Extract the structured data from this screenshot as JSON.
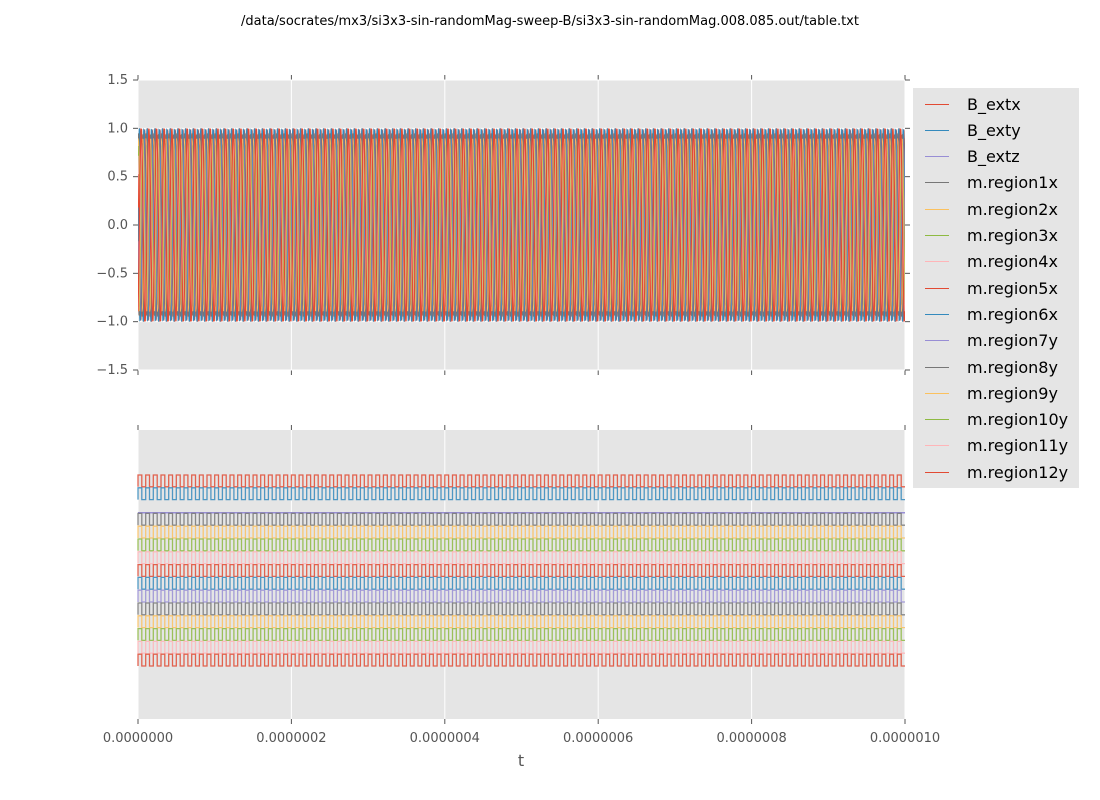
{
  "title": "/data/socrates/mx3/si3x3-sin-randomMag-sweep-B/si3x3-sin-randomMag.008.085.out/table.txt",
  "chart_data": [
    {
      "type": "line",
      "xlabel": "",
      "ylabel": "",
      "xlim": [
        0,
        1e-06
      ],
      "ylim": [
        -1.5,
        1.5
      ],
      "yticks": [
        "1.5",
        "1.0",
        "0.5",
        "0.0",
        "−0.5",
        "−1.0",
        "−1.5"
      ],
      "grid": true,
      "legend": "outside-right",
      "waveform": "sinusoid",
      "cycles": 100,
      "series": [
        {
          "name": "B_extx",
          "amplitude": 1.0
        },
        {
          "name": "B_exty",
          "amplitude": 1.0
        },
        {
          "name": "B_extz",
          "amplitude": 0.0
        },
        {
          "name": "m.region1x",
          "amplitude": 0.95
        },
        {
          "name": "m.region2x",
          "amplitude": 0.9
        },
        {
          "name": "m.region3x",
          "amplitude": 0.85
        },
        {
          "name": "m.region4x",
          "amplitude": 0.9
        },
        {
          "name": "m.region5x",
          "amplitude": 1.0
        },
        {
          "name": "m.region6x",
          "amplitude": 1.0
        },
        {
          "name": "m.region7y",
          "amplitude": 0.9
        },
        {
          "name": "m.region8y",
          "amplitude": 0.95
        },
        {
          "name": "m.region9y",
          "amplitude": 0.9
        },
        {
          "name": "m.region10y",
          "amplitude": 0.85
        },
        {
          "name": "m.region11y",
          "amplitude": 0.9
        },
        {
          "name": "m.region12y",
          "amplitude": 1.0
        }
      ]
    },
    {
      "type": "line",
      "xlabel": "t",
      "ylabel": "",
      "xlim": [
        0,
        1e-06
      ],
      "xticks": [
        "0.0000000",
        "0.0000002",
        "0.0000004",
        "0.0000006",
        "0.0000008",
        "0.0000010"
      ],
      "grid": true,
      "waveform": "square",
      "cycles": 100,
      "series_offsets": [
        14,
        13,
        12,
        11,
        10,
        9,
        8,
        7,
        6,
        5,
        4,
        3,
        2,
        1,
        0
      ],
      "flat_series": [
        2
      ]
    }
  ],
  "colors": [
    "#E24A33",
    "#348ABD",
    "#988ED5",
    "#777777",
    "#FBC15E",
    "#8EBA42",
    "#FFB5B8"
  ]
}
